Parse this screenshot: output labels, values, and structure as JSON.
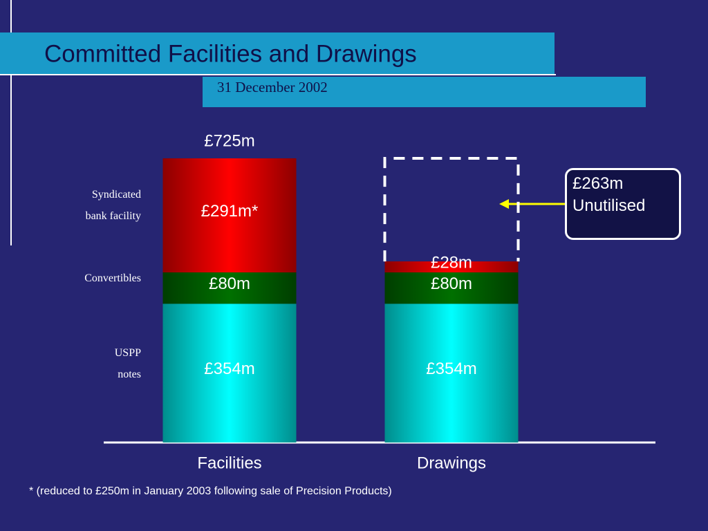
{
  "chart_data": {
    "type": "bar",
    "stacked": true,
    "title": "Committed Facilities and Drawings",
    "subtitle": "31 December 2002",
    "categories": [
      "Facilities",
      "Drawings"
    ],
    "series": [
      {
        "name": "USPP\nnotes",
        "color": "#00ffff",
        "values": [
          354,
          354
        ],
        "value_labels": [
          "£354m",
          "£354m"
        ]
      },
      {
        "name": "Convertibles",
        "color": "#007000",
        "values": [
          80,
          80
        ],
        "value_labels": [
          "£80m",
          "£80m"
        ]
      },
      {
        "name": "Syndicated\nbank facility",
        "color": "#ff0000",
        "values": [
          291,
          28
        ],
        "value_labels": [
          "£291m*",
          "£28m"
        ]
      }
    ],
    "annotations": [
      {
        "text": "£725m",
        "value": 725
      },
      {
        "text": "£263m\nUnutilised",
        "value": 263
      }
    ],
    "footnote": "* (reduced to £250m in January 2003 following sale of Precision Products)"
  }
}
